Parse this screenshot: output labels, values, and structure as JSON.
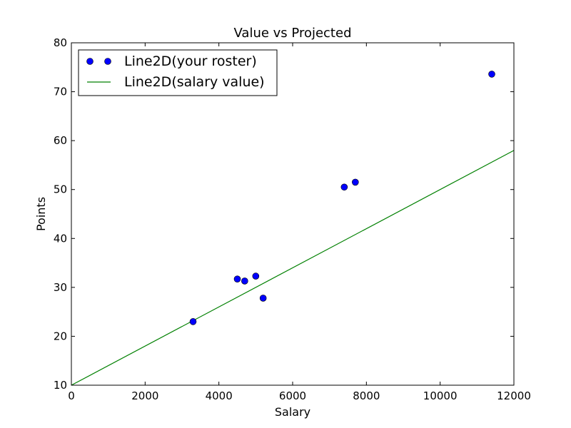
{
  "chart_data": {
    "type": "scatter",
    "title": "Value vs Projected",
    "xlabel": "Salary",
    "ylabel": "Points",
    "xlim": [
      0,
      12000
    ],
    "ylim": [
      10,
      80
    ],
    "xticks": [
      0,
      2000,
      4000,
      6000,
      8000,
      10000,
      12000
    ],
    "yticks": [
      10,
      20,
      30,
      40,
      50,
      60,
      70,
      80
    ],
    "grid": false,
    "legend_position": "top-left",
    "series": [
      {
        "name": "Line2D(your roster)",
        "kind": "scatter",
        "color": "#0000ff",
        "points": [
          {
            "x": 3300,
            "y": 23.0
          },
          {
            "x": 4500,
            "y": 31.7
          },
          {
            "x": 4700,
            "y": 31.3
          },
          {
            "x": 5000,
            "y": 32.3
          },
          {
            "x": 5200,
            "y": 27.8
          },
          {
            "x": 7400,
            "y": 50.5
          },
          {
            "x": 7700,
            "y": 51.5
          },
          {
            "x": 11400,
            "y": 73.6
          }
        ]
      },
      {
        "name": "Line2D(salary value)",
        "kind": "line",
        "color": "#008000",
        "points": [
          {
            "x": 0,
            "y": 10.0
          },
          {
            "x": 12000,
            "y": 58.0
          }
        ]
      }
    ]
  }
}
